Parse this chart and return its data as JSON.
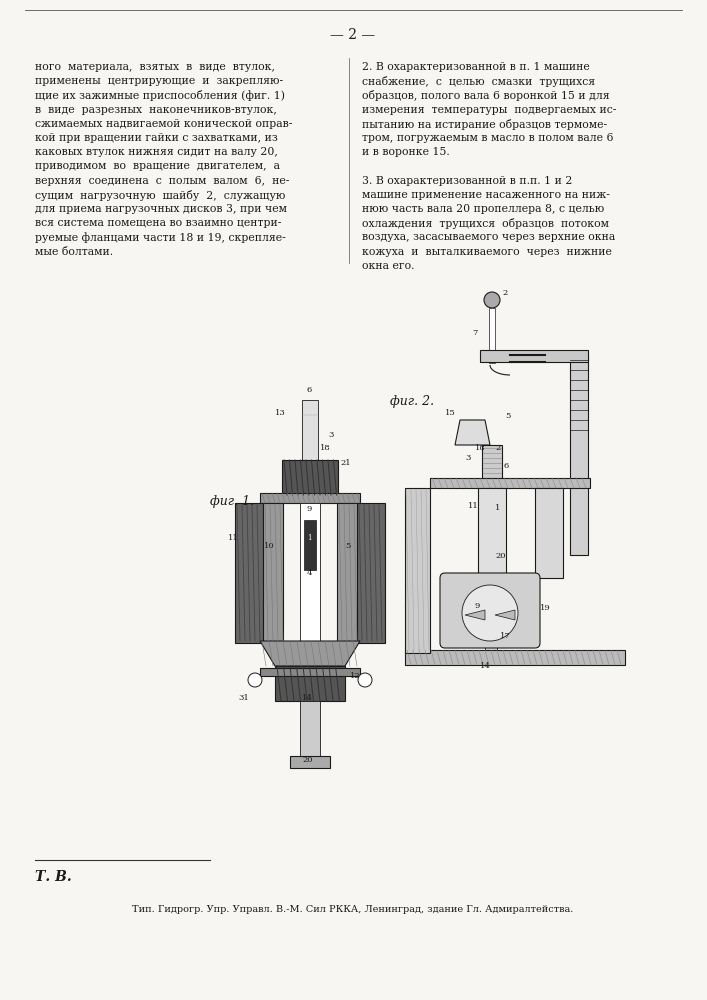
{
  "bg_color": "#f8f6f2",
  "page_num": "— 2 —",
  "col1_text": [
    "ного  материала,  взятых  в  виде  втулок,",
    "применены  центрирующие  и  закрепляю-",
    "щие их зажимные приспособления (фиг. 1)",
    "в  виде  разрезных  наконечников-втулок,",
    "сжимаемых надвигаемой конической оправ-",
    "кой при вращении гайки с захватками, из",
    "каковых втулок нижняя сидит на валу 20,",
    "приводимом  во  вращение  двигателем,  а",
    "верхняя  соединена  с  полым  валом  6,  не-",
    "сущим  нагрузочную  шайбу  2,  служащую",
    "для приема нагрузочных дисков 3, при чем",
    "вся система помещена во взаимно центри-",
    "руемые фланцами части 18 и 19, скрепляе-",
    "мые болтами."
  ],
  "col2_text": [
    "2. В охарактеризованной в п. 1 машине",
    "снабжение,  с  целью  смазки  трущихся",
    "образцов, полого вала 6 воронкой 15 и для",
    "измерения  температуры  подвергаемых ис-",
    "пытанию на истирание образцов термоме-",
    "тром, погружаемым в масло в полом вале 6",
    "и в воронке 15.",
    "",
    "3. В охарактеризованной в п.п. 1 и 2",
    "машине применение насаженного на ниж-",
    "нюю часть вала 20 пропеллера 8, с целью",
    "охлаждения  трущихся  образцов  потоком",
    "воздуха, засасываемого через верхние окна",
    "кожуха  и  выталкиваемого  через  нижние",
    "окна его."
  ],
  "fig1_label": "фиг. 1.",
  "fig2_label": "фиг. 2.",
  "footer_tb": "Т. В.",
  "footer_print": "Тип. Гидрогр. Упр. Управл. В.-М. Сил РККА, Ленинград, здание Гл. Адмиралтейства."
}
